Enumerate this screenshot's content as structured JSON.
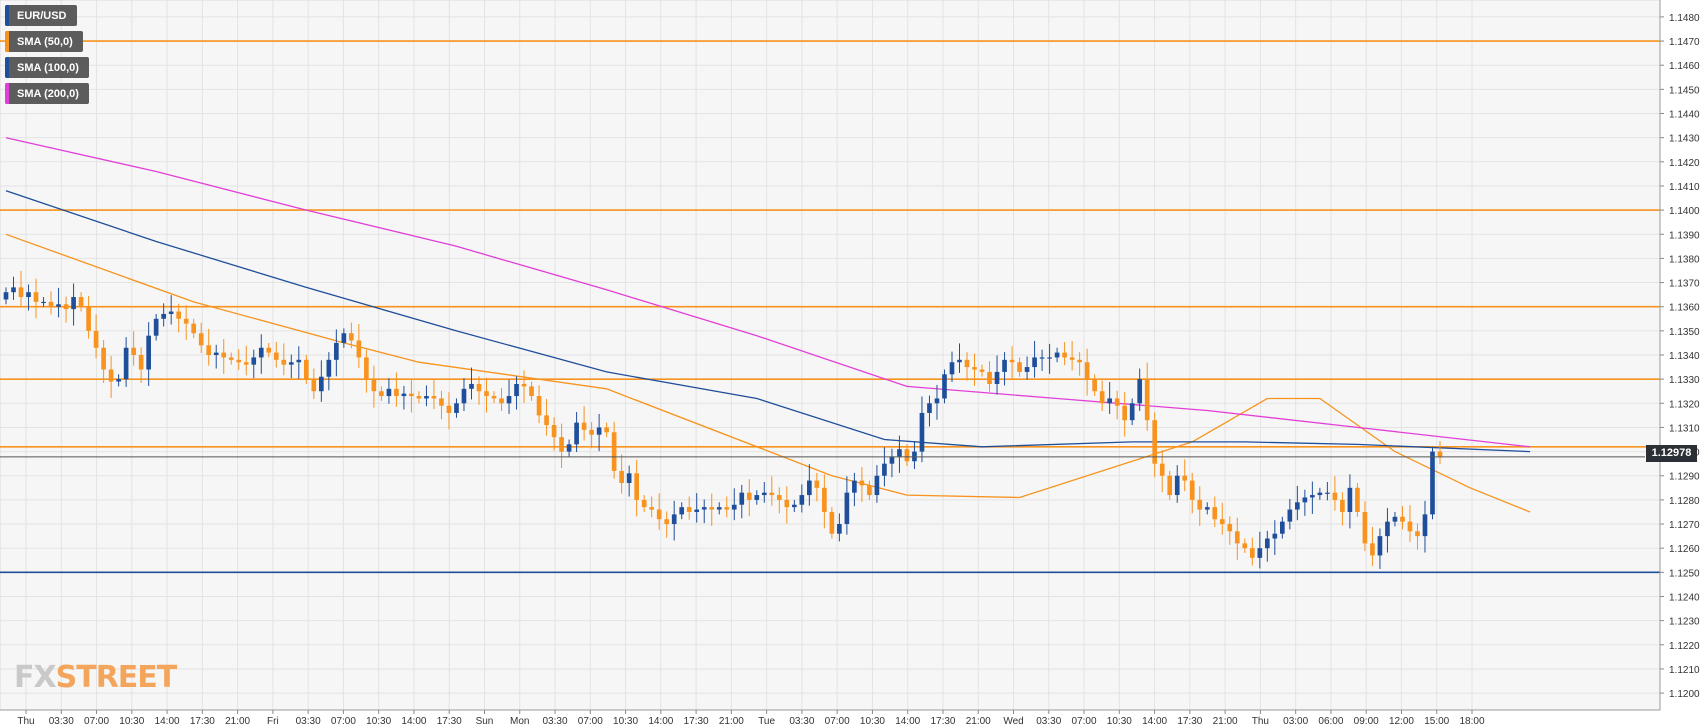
{
  "symbol": "EUR/USD",
  "legend": [
    {
      "label": "EUR/USD",
      "color": "#1f4e9a"
    },
    {
      "label": "SMA (50,0)",
      "color": "#f7931e"
    },
    {
      "label": "SMA (100,0)",
      "color": "#1f4e9a"
    },
    {
      "label": "SMA (200,0)",
      "color": "#e23fd8"
    }
  ],
  "price_badge": "1.12978",
  "watermark": {
    "fx": "FX",
    "street": "STREET"
  },
  "colors": {
    "bull": "#1f4e9a",
    "bear": "#f7931e",
    "sma50": "#f7931e",
    "sma100": "#1f4e9a",
    "sma200": "#e23fd8",
    "grid": "#e3e3e3",
    "axis": "#8a8a8a"
  },
  "chart_data": {
    "type": "candlestick",
    "title": "",
    "xlabel": "",
    "ylabel": "",
    "ylim": [
      1.1193,
      1.1487
    ],
    "y_ticks": [
      "1.1200",
      "1.1210",
      "1.1220",
      "1.1230",
      "1.1240",
      "1.1250",
      "1.1260",
      "1.1270",
      "1.1280",
      "1.1290",
      "1.1300",
      "1.1310",
      "1.1320",
      "1.1330",
      "1.1340",
      "1.1350",
      "1.1360",
      "1.1370",
      "1.1380",
      "1.1390",
      "1.1400",
      "1.1410",
      "1.1420",
      "1.1430",
      "1.1440",
      "1.1450",
      "1.1460",
      "1.1470",
      "1.1480"
    ],
    "x_ticks": [
      "Thu",
      "03:30",
      "07:00",
      "10:30",
      "14:00",
      "17:30",
      "21:00",
      "Fri",
      "03:30",
      "07:00",
      "10:30",
      "14:00",
      "17:30",
      "Sun",
      "Mon",
      "03:30",
      "07:00",
      "10:30",
      "14:00",
      "17:30",
      "21:00",
      "Tue",
      "03:30",
      "07:00",
      "10:30",
      "14:00",
      "17:30",
      "21:00",
      "Wed",
      "03:30",
      "07:00",
      "10:30",
      "14:00",
      "17:30",
      "21:00",
      "Thu",
      "03:00",
      "06:00",
      "09:00",
      "12:00",
      "15:00",
      "18:00"
    ],
    "grid": true,
    "horizontal_levels": [
      {
        "value": 1.147,
        "color": "#f7931e"
      },
      {
        "value": 1.14,
        "color": "#f7931e"
      },
      {
        "value": 1.136,
        "color": "#f7931e"
      },
      {
        "value": 1.133,
        "color": "#f7931e"
      },
      {
        "value": 1.1302,
        "color": "#f7931e"
      },
      {
        "value": 1.125,
        "color": "#1f4e9a"
      }
    ],
    "last_price": 1.12978,
    "candles_close": [
      1.1366,
      1.1368,
      1.1364,
      1.1366,
      1.1362,
      1.1362,
      1.136,
      1.1361,
      1.1359,
      1.1364,
      1.136,
      1.135,
      1.1343,
      1.1334,
      1.1329,
      1.133,
      1.1343,
      1.134,
      1.1334,
      1.1348,
      1.1355,
      1.1357,
      1.1358,
      1.1355,
      1.1353,
      1.1349,
      1.1344,
      1.134,
      1.1341,
      1.1339,
      1.1338,
      1.1337,
      1.1336,
      1.1339,
      1.1343,
      1.1341,
      1.1338,
      1.1336,
      1.1337,
      1.1338,
      1.133,
      1.1325,
      1.1331,
      1.1338,
      1.1345,
      1.1349,
      1.1346,
      1.1339,
      1.133,
      1.1325,
      1.1323,
      1.1326,
      1.1323,
      1.1324,
      1.1323,
      1.1322,
      1.1323,
      1.1322,
      1.1319,
      1.1316,
      1.132,
      1.1326,
      1.1328,
      1.1325,
      1.1323,
      1.1322,
      1.132,
      1.1323,
      1.1328,
      1.1327,
      1.1323,
      1.1315,
      1.1311,
      1.1306,
      1.13,
      1.1303,
      1.1312,
      1.1309,
      1.1307,
      1.131,
      1.1308,
      1.1292,
      1.1287,
      1.1291,
      1.128,
      1.1277,
      1.1276,
      1.1272,
      1.127,
      1.1274,
      1.1277,
      1.1275,
      1.1276,
      1.1277,
      1.1276,
      1.1277,
      1.1276,
      1.1278,
      1.1283,
      1.128,
      1.1282,
      1.1283,
      1.1282,
      1.128,
      1.1277,
      1.1278,
      1.1282,
      1.1288,
      1.1285,
      1.1275,
      1.1266,
      1.127,
      1.1283,
      1.1288,
      1.1286,
      1.1282,
      1.129,
      1.1295,
      1.1298,
      1.1301,
      1.1296,
      1.13,
      1.1316,
      1.132,
      1.1322,
      1.1332,
      1.1337,
      1.1338,
      1.1335,
      1.1334,
      1.1333,
      1.1328,
      1.1333,
      1.1338,
      1.1337,
      1.1333,
      1.1335,
      1.1339,
      1.1339,
      1.1339,
      1.1341,
      1.1339,
      1.1338,
      1.1337,
      1.133,
      1.1325,
      1.132,
      1.1322,
      1.1319,
      1.1313,
      1.132,
      1.133,
      1.1313,
      1.1295,
      1.129,
      1.1282,
      1.129,
      1.1288,
      1.128,
      1.1276,
      1.1277,
      1.1272,
      1.127,
      1.1267,
      1.1262,
      1.126,
      1.1256,
      1.126,
      1.1264,
      1.1266,
      1.1271,
      1.1276,
      1.1279,
      1.1281,
      1.1282,
      1.1283,
      1.1283,
      1.128,
      1.1275,
      1.1285,
      1.1275,
      1.1262,
      1.1257,
      1.1265,
      1.1271,
      1.1273,
      1.1271,
      1.1267,
      1.1265,
      1.1274,
      1.13,
      1.1298
    ],
    "series": [
      {
        "name": "SMA (50,0)",
        "x_index": [
          0,
          25,
          45,
          55,
          80,
          110,
          120,
          135,
          158,
          168,
          175,
          185,
          195,
          203
        ],
        "values": [
          1.139,
          1.1362,
          1.1345,
          1.1337,
          1.1326,
          1.129,
          1.1282,
          1.1281,
          1.1304,
          1.1322,
          1.1322,
          1.13,
          1.1285,
          1.1275
        ]
      },
      {
        "name": "SMA (100,0)",
        "x_index": [
          0,
          20,
          40,
          60,
          80,
          100,
          117,
          130,
          150,
          165,
          180,
          203
        ],
        "values": [
          1.1408,
          1.1387,
          1.1368,
          1.135,
          1.1333,
          1.1322,
          1.1305,
          1.1302,
          1.1304,
          1.1304,
          1.1303,
          1.13
        ]
      },
      {
        "name": "SMA (200,0)",
        "x_index": [
          0,
          20,
          40,
          60,
          80,
          100,
          120,
          140,
          160,
          180,
          203
        ],
        "values": [
          1.143,
          1.1416,
          1.14,
          1.1385,
          1.1367,
          1.1348,
          1.1327,
          1.1322,
          1.1317,
          1.131,
          1.1302
        ]
      }
    ]
  }
}
